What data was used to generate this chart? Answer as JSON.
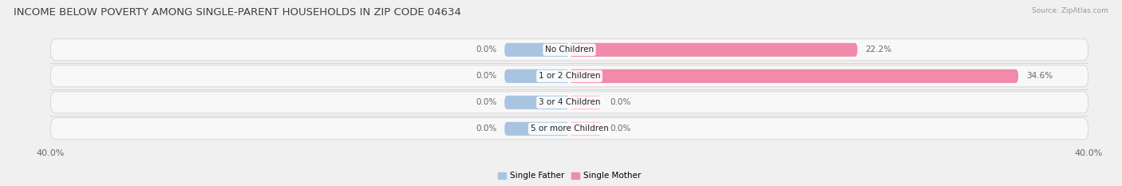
{
  "title": "INCOME BELOW POVERTY AMONG SINGLE-PARENT HOUSEHOLDS IN ZIP CODE 04634",
  "source": "Source: ZipAtlas.com",
  "categories": [
    "No Children",
    "1 or 2 Children",
    "3 or 4 Children",
    "5 or more Children"
  ],
  "single_father": [
    0.0,
    0.0,
    0.0,
    0.0
  ],
  "single_mother": [
    22.2,
    34.6,
    0.0,
    0.0
  ],
  "father_color": "#a8c4e0",
  "mother_color": "#f28aaa",
  "mother_zero_color": "#f8bcd0",
  "row_bg_color": "#ffffff",
  "row_border_color": "#dddddd",
  "max_val": 40.0,
  "bar_height": 0.52,
  "stub_size": 5.0,
  "zero_stub_size": 2.5,
  "label_color": "#666666",
  "title_color": "#404040",
  "source_color": "#999999",
  "axis_label_color": "#666666",
  "background_color": "#f0f0f0",
  "legend_labels": [
    "Single Father",
    "Single Mother"
  ],
  "legend_colors": [
    "#a8c4e0",
    "#f28aaa"
  ],
  "title_fontsize": 9.5,
  "label_fontsize": 7.5,
  "cat_fontsize": 7.5,
  "axis_fontsize": 8.0
}
